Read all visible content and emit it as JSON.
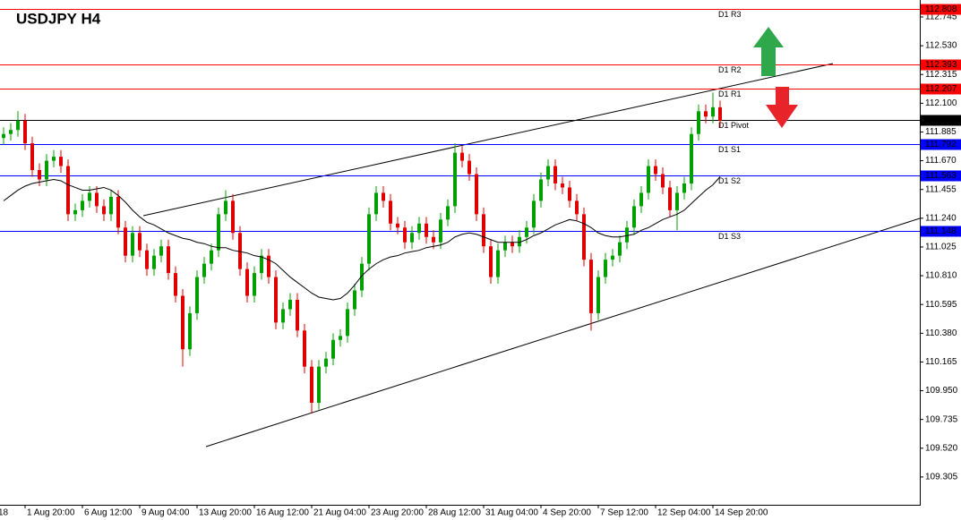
{
  "chart_data": {
    "type": "candlestick",
    "title": "USDJPY H4",
    "ylim": [
      109.097,
      112.872
    ],
    "yticks": [
      112.745,
      {
        "value": 112.53,
        "label": "112.530"
      },
      112.315,
      {
        "value": 112.1,
        "label": "112.100"
      },
      111.885,
      {
        "value": 111.67,
        "label": "111.670"
      },
      111.455,
      {
        "value": 111.24,
        "label": "111.240"
      },
      111.025,
      {
        "value": 110.81,
        "label": "110.810"
      },
      110.595,
      {
        "value": 110.38,
        "label": "110.380"
      },
      110.165,
      {
        "value": 109.95,
        "label": "109.950"
      },
      109.735,
      {
        "value": 109.52,
        "label": "109.520"
      },
      109.305
    ],
    "xticks": [
      {
        "value": -1,
        "label": "18"
      },
      {
        "value": 3,
        "label": "1 Aug 20:00"
      },
      {
        "value": 11,
        "label": "6 Aug 12:00"
      },
      {
        "value": 19,
        "label": "9 Aug 04:00"
      },
      {
        "value": 27,
        "label": "13 Aug 20:00"
      },
      {
        "value": 35,
        "label": "16 Aug 12:00"
      },
      {
        "value": 43,
        "label": "21 Aug 04:00"
      },
      {
        "value": 51,
        "label": "23 Aug 20:00"
      },
      {
        "value": 59,
        "label": "28 Aug 12:00"
      },
      {
        "value": 67,
        "label": "31 Aug 04:00"
      },
      {
        "value": 75,
        "label": "4 Sep 20:00"
      },
      {
        "value": 83,
        "label": "7 Sep 12:00"
      },
      {
        "value": 91,
        "label": "12 Sep 04:00"
      },
      {
        "value": 99,
        "label": "14 Sep 20:00"
      }
    ],
    "up_color": "#00a000",
    "down_color": "#e00000",
    "levels": [
      {
        "name": "D1 R3",
        "value": 112.808,
        "color": "#ff0000"
      },
      {
        "name": "D1 R2",
        "value": 112.393,
        "color": "#ff0000"
      },
      {
        "name": "D1 R1",
        "value": 112.207,
        "color": "#ff0000"
      },
      {
        "name": "D1 Pivot",
        "value": 111.978,
        "color": "#000000"
      },
      {
        "name": "D1 S1",
        "value": 111.792,
        "color": "#0000ff"
      },
      {
        "name": "D1 S2",
        "value": 111.563,
        "color": "#0000ff"
      },
      {
        "name": "D1 S3",
        "value": 111.148,
        "color": "#0000ff"
      }
    ],
    "candles": [
      [
        111.84,
        111.92,
        111.79,
        111.87
      ],
      [
        111.87,
        111.95,
        111.82,
        111.9
      ],
      [
        111.9,
        112.04,
        111.85,
        111.97
      ],
      [
        111.97,
        112.02,
        111.75,
        111.8
      ],
      [
        111.8,
        111.85,
        111.55,
        111.6
      ],
      [
        111.6,
        111.65,
        111.48,
        111.53
      ],
      [
        111.53,
        111.72,
        111.48,
        111.67
      ],
      [
        111.67,
        111.75,
        111.62,
        111.7
      ],
      [
        111.7,
        111.75,
        111.58,
        111.63
      ],
      [
        111.63,
        111.68,
        111.22,
        111.27
      ],
      [
        111.27,
        111.35,
        111.22,
        111.3
      ],
      [
        111.3,
        111.42,
        111.25,
        111.37
      ],
      [
        111.37,
        111.48,
        111.32,
        111.43
      ],
      [
        111.43,
        111.48,
        111.28,
        111.33
      ],
      [
        111.33,
        111.38,
        111.22,
        111.27
      ],
      [
        111.27,
        111.45,
        111.22,
        111.4
      ],
      [
        111.4,
        111.45,
        111.12,
        111.17
      ],
      [
        111.17,
        111.22,
        110.91,
        110.96
      ],
      [
        110.96,
        111.18,
        110.91,
        111.13
      ],
      [
        111.13,
        111.18,
        110.95,
        111.0
      ],
      [
        111.0,
        111.05,
        110.81,
        110.86
      ],
      [
        110.86,
        111.01,
        110.81,
        110.96
      ],
      [
        110.96,
        111.08,
        110.91,
        111.03
      ],
      [
        111.03,
        111.08,
        110.78,
        110.83
      ],
      [
        110.83,
        110.88,
        110.61,
        110.66
      ],
      [
        110.66,
        110.71,
        110.13,
        110.26
      ],
      [
        110.26,
        110.58,
        110.21,
        110.53
      ],
      [
        110.53,
        110.85,
        110.48,
        110.8
      ],
      [
        110.8,
        110.95,
        110.75,
        110.9
      ],
      [
        110.9,
        111.05,
        110.85,
        111.0
      ],
      [
        111.0,
        111.32,
        110.95,
        111.27
      ],
      [
        111.27,
        111.45,
        111.22,
        111.37
      ],
      [
        111.37,
        111.42,
        111.08,
        111.13
      ],
      [
        111.13,
        111.18,
        110.81,
        110.86
      ],
      [
        110.86,
        110.91,
        110.61,
        110.66
      ],
      [
        110.66,
        110.88,
        110.61,
        110.83
      ],
      [
        110.83,
        111.01,
        110.78,
        110.96
      ],
      [
        110.96,
        111.01,
        110.75,
        110.8
      ],
      [
        110.8,
        110.85,
        110.41,
        110.46
      ],
      [
        110.46,
        110.61,
        110.41,
        110.56
      ],
      [
        110.56,
        110.68,
        110.51,
        110.63
      ],
      [
        110.63,
        110.68,
        110.35,
        110.4
      ],
      [
        110.4,
        110.45,
        110.08,
        110.13
      ],
      [
        110.13,
        110.18,
        109.78,
        109.86
      ],
      [
        109.86,
        110.18,
        109.81,
        110.13
      ],
      [
        110.13,
        110.24,
        110.08,
        110.19
      ],
      [
        110.19,
        110.38,
        110.14,
        110.33
      ],
      [
        110.33,
        110.41,
        110.28,
        110.36
      ],
      [
        110.36,
        110.61,
        110.31,
        110.56
      ],
      [
        110.56,
        110.75,
        110.51,
        110.7
      ],
      [
        110.7,
        110.95,
        110.65,
        110.9
      ],
      [
        110.9,
        111.32,
        110.85,
        111.27
      ],
      [
        111.27,
        111.48,
        111.22,
        111.43
      ],
      [
        111.43,
        111.48,
        111.32,
        111.37
      ],
      [
        111.37,
        111.42,
        111.15,
        111.2
      ],
      [
        111.2,
        111.25,
        111.12,
        111.17
      ],
      [
        111.17,
        111.22,
        111.01,
        111.06
      ],
      [
        111.06,
        111.18,
        111.01,
        111.13
      ],
      [
        111.13,
        111.25,
        111.08,
        111.2
      ],
      [
        111.2,
        111.25,
        111.05,
        111.1
      ],
      [
        111.1,
        111.15,
        111.01,
        111.06
      ],
      [
        111.06,
        111.28,
        111.01,
        111.23
      ],
      [
        111.23,
        111.38,
        111.18,
        111.33
      ],
      [
        111.33,
        111.8,
        111.28,
        111.73
      ],
      [
        111.73,
        111.78,
        111.62,
        111.67
      ],
      [
        111.67,
        111.72,
        111.52,
        111.57
      ],
      [
        111.57,
        111.62,
        111.22,
        111.27
      ],
      [
        111.27,
        111.32,
        110.98,
        111.03
      ],
      [
        111.03,
        111.08,
        110.75,
        110.8
      ],
      [
        110.8,
        111.05,
        110.75,
        111.0
      ],
      [
        111.0,
        111.11,
        110.95,
        111.06
      ],
      [
        111.06,
        111.11,
        110.98,
        111.03
      ],
      [
        111.03,
        111.15,
        110.98,
        111.1
      ],
      [
        111.1,
        111.22,
        111.05,
        111.17
      ],
      [
        111.17,
        111.42,
        111.12,
        111.37
      ],
      [
        111.37,
        111.58,
        111.32,
        111.53
      ],
      [
        111.53,
        111.68,
        111.48,
        111.63
      ],
      [
        111.63,
        111.68,
        111.45,
        111.5
      ],
      [
        111.5,
        111.55,
        111.42,
        111.47
      ],
      [
        111.47,
        111.52,
        111.32,
        111.37
      ],
      [
        111.37,
        111.42,
        111.22,
        111.27
      ],
      [
        111.27,
        111.32,
        110.88,
        110.93
      ],
      [
        110.93,
        110.98,
        110.4,
        110.53
      ],
      [
        110.53,
        110.85,
        110.48,
        110.8
      ],
      [
        110.8,
        110.98,
        110.75,
        110.93
      ],
      [
        110.93,
        111.01,
        110.88,
        110.96
      ],
      [
        110.96,
        111.11,
        110.91,
        111.06
      ],
      [
        111.06,
        111.22,
        111.01,
        111.17
      ],
      [
        111.17,
        111.38,
        111.12,
        111.33
      ],
      [
        111.33,
        111.48,
        111.28,
        111.43
      ],
      [
        111.43,
        111.68,
        111.38,
        111.63
      ],
      [
        111.63,
        111.68,
        111.52,
        111.57
      ],
      [
        111.57,
        111.62,
        111.42,
        111.47
      ],
      [
        111.47,
        111.52,
        111.25,
        111.3
      ],
      [
        111.3,
        111.48,
        111.15,
        111.43
      ],
      [
        111.43,
        111.55,
        111.38,
        111.5
      ],
      [
        111.5,
        111.92,
        111.45,
        111.87
      ],
      [
        111.87,
        112.09,
        111.82,
        112.04
      ],
      [
        112.04,
        112.09,
        111.95,
        112.0
      ],
      [
        112.0,
        112.18,
        111.95,
        112.07
      ],
      [
        112.07,
        112.12,
        111.92,
        111.97
      ]
    ],
    "ma": [
      111.37,
      111.41,
      111.45,
      111.48,
      111.5,
      111.51,
      111.52,
      111.53,
      111.52,
      111.49,
      111.47,
      111.45,
      111.45,
      111.46,
      111.47,
      111.45,
      111.41,
      111.36,
      111.3,
      111.25,
      111.21,
      111.19,
      111.16,
      111.13,
      111.11,
      111.09,
      111.08,
      111.06,
      111.05,
      111.03,
      111.02,
      111.02,
      111.0,
      110.99,
      110.98,
      110.96,
      110.95,
      110.93,
      110.9,
      110.85,
      110.8,
      110.76,
      110.72,
      110.68,
      110.65,
      110.64,
      110.63,
      110.64,
      110.68,
      110.74,
      110.81,
      110.86,
      110.9,
      110.93,
      110.95,
      110.96,
      110.98,
      110.99,
      111.0,
      111.02,
      111.03,
      111.04,
      111.06,
      111.1,
      111.12,
      111.13,
      111.12,
      111.1,
      111.08,
      111.06,
      111.06,
      111.06,
      111.06,
      111.08,
      111.11,
      111.13,
      111.16,
      111.19,
      111.21,
      111.23,
      111.22,
      111.2,
      111.17,
      111.13,
      111.11,
      111.1,
      111.1,
      111.11,
      111.12,
      111.15,
      111.17,
      111.2,
      111.23,
      111.25,
      111.27,
      111.3,
      111.35,
      111.4,
      111.45,
      111.49,
      111.55
    ]
  }
}
